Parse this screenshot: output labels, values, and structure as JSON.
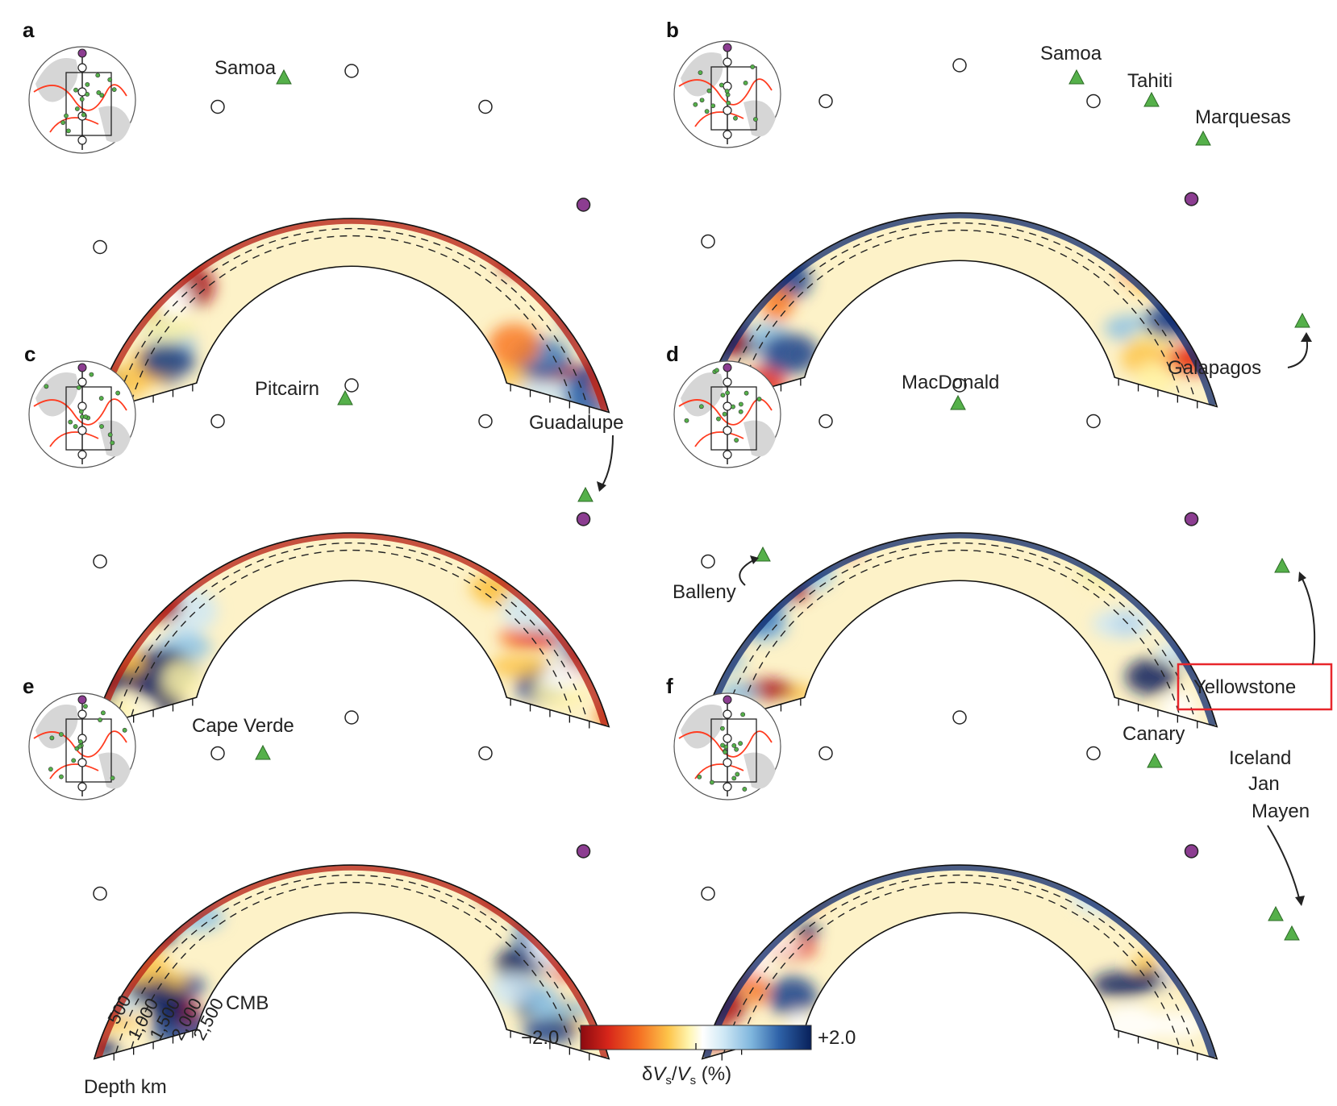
{
  "panels": [
    {
      "id": "a",
      "letter": "a",
      "hotspots": [
        {
          "label": "Samoa",
          "triangles": [
            1
          ]
        }
      ],
      "has_ticks_labels": false
    },
    {
      "id": "b",
      "letter": "b",
      "hotspots": [
        {
          "label": "Samoa",
          "triangles": [
            1
          ]
        },
        {
          "label": "Tahiti",
          "triangles": [
            1
          ]
        },
        {
          "label": "Marquesas",
          "triangles": [
            1
          ]
        },
        {
          "label": "Galapagos",
          "triangles": [
            1
          ]
        }
      ]
    },
    {
      "id": "c",
      "letter": "c",
      "hotspots": [
        {
          "label": "Pitcairn",
          "triangles": [
            1
          ]
        },
        {
          "label": "Guadalupe",
          "triangles": [
            1
          ]
        }
      ]
    },
    {
      "id": "d",
      "letter": "d",
      "hotspots": [
        {
          "label": "MacDonald",
          "triangles": [
            1
          ]
        },
        {
          "label": "Balleny",
          "triangles": [
            1
          ]
        },
        {
          "label": "Yellowstone",
          "triangles": [
            1
          ],
          "highlighted": true
        }
      ]
    },
    {
      "id": "e",
      "letter": "e",
      "hotspots": [
        {
          "label": "Cape Verde",
          "triangles": [
            1
          ]
        }
      ]
    },
    {
      "id": "f",
      "letter": "f",
      "hotspots": [
        {
          "label": "Canary",
          "triangles": [
            1
          ]
        },
        {
          "label": "Iceland",
          "triangles": [
            2
          ]
        },
        {
          "label": "Jan",
          "triangles": []
        },
        {
          "label": "Mayen",
          "triangles": []
        }
      ]
    }
  ],
  "labels": {
    "a": "a",
    "b": "b",
    "c": "c",
    "d": "d",
    "e": "e",
    "f": "f",
    "samoa_a": "Samoa",
    "samoa_b": "Samoa",
    "tahiti": "Tahiti",
    "marquesas": "Marquesas",
    "galapagos": "Galapagos",
    "pitcairn": "Pitcairn",
    "guadalupe": "Guadalupe",
    "macdonald": "MacDonald",
    "balleny": "Balleny",
    "yellowstone": "Yellowstone",
    "cape_verde": "Cape Verde",
    "canary": "Canary",
    "iceland": "Iceland",
    "jan": "Jan",
    "mayen": "Mayen",
    "cmb": "CMB"
  },
  "depth_axis": {
    "title": "Depth km",
    "ticks": [
      "500",
      "1,000",
      "1,500",
      "2,000",
      "2,500"
    ],
    "values_km": [
      500,
      1000,
      1500,
      2000,
      2500
    ]
  },
  "colorbar": {
    "min_label": "−2.0",
    "max_label": "+2.0",
    "title_delta": "δ",
    "title_V": "V",
    "title_s": "s",
    "title_slash": "/",
    "title_pct": " (%)",
    "range": [
      -2.0,
      2.0
    ],
    "colors": [
      "#a50f15",
      "#e3301c",
      "#f97a25",
      "#fdc44a",
      "#fff3a6",
      "#ffffff",
      "#cfe8f5",
      "#8ec2e3",
      "#3f79b8",
      "#1a3f8a",
      "#0a1f5c"
    ]
  },
  "colors": {
    "hotspot_triangle": "#55b04a",
    "endpoint_purple": "#8c3d91",
    "plate_boundaries": "#ff3b1f",
    "highlight_box": "#e8262b",
    "land": "#d6d6d6"
  }
}
